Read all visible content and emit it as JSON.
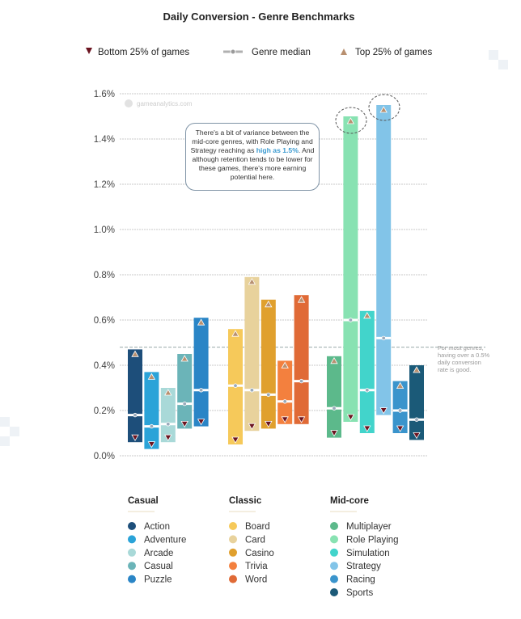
{
  "title": "Daily Conversion - Genre Benchmarks",
  "legend": {
    "bottom": "Bottom 25% of games",
    "median": "Genre median",
    "top": "Top 25% of games",
    "bottom_color": "#6b1420",
    "median_color": "#b0b0b0",
    "top_color": "#b89070"
  },
  "watermark": "gameanalytics.com",
  "callout": {
    "before": "There's a bit of variance between the mid-core genres, with Role Playing and Strategy reaching as ",
    "highlight": "high as 1.5%",
    "after": ". And although retention tends to be lower for these games, there's more earning potential here."
  },
  "side_note": [
    "For most genres,",
    "having over a 0.5%",
    "daily conversion",
    "rate is good."
  ],
  "chart_data": {
    "type": "bar",
    "subtype": "floating range bar (bottom quartile to top quartile with median)",
    "title": "Daily Conversion - Genre Benchmarks",
    "ylim": [
      0,
      1.6
    ],
    "yticks": [
      "0.0%",
      "0.2%",
      "0.4%",
      "0.6%",
      "0.8%",
      "1.0%",
      "1.2%",
      "1.4%",
      "1.6%"
    ],
    "ytick_values": [
      0,
      0.2,
      0.4,
      0.6,
      0.8,
      1.0,
      1.2,
      1.4,
      1.6
    ],
    "grid": true,
    "reference_line": 0.48,
    "legend_position": "top",
    "groups": [
      {
        "name": "Casual",
        "genres": [
          {
            "name": "Action",
            "color": "#1d4e7a",
            "bottom": 0.06,
            "median": 0.18,
            "top": 0.47
          },
          {
            "name": "Adventure",
            "color": "#2aa3d8",
            "bottom": 0.03,
            "median": 0.13,
            "top": 0.37
          },
          {
            "name": "Arcade",
            "color": "#a9d9d8",
            "bottom": 0.06,
            "median": 0.14,
            "top": 0.3
          },
          {
            "name": "Casual",
            "color": "#6bb4b8",
            "bottom": 0.12,
            "median": 0.23,
            "top": 0.45
          },
          {
            "name": "Puzzle",
            "color": "#2a85c6",
            "bottom": 0.13,
            "median": 0.29,
            "top": 0.61
          }
        ]
      },
      {
        "name": "Classic",
        "genres": [
          {
            "name": "Board",
            "color": "#f6c95a",
            "bottom": 0.05,
            "median": 0.31,
            "top": 0.56
          },
          {
            "name": "Card",
            "color": "#e8d29c",
            "bottom": 0.11,
            "median": 0.29,
            "top": 0.79
          },
          {
            "name": "Casino",
            "color": "#e0a02e",
            "bottom": 0.12,
            "median": 0.27,
            "top": 0.69
          },
          {
            "name": "Trivia",
            "color": "#f3803e",
            "bottom": 0.14,
            "median": 0.24,
            "top": 0.42
          },
          {
            "name": "Word",
            "color": "#e06a36",
            "bottom": 0.14,
            "median": 0.33,
            "top": 0.71
          }
        ]
      },
      {
        "name": "Mid-core",
        "genres": [
          {
            "name": "Multiplayer",
            "color": "#5cb98b",
            "bottom": 0.08,
            "median": 0.21,
            "top": 0.44
          },
          {
            "name": "Role Playing",
            "color": "#88e2b2",
            "bottom": 0.15,
            "median": 0.6,
            "top": 1.5
          },
          {
            "name": "Simulation",
            "color": "#42d4cb",
            "bottom": 0.1,
            "median": 0.29,
            "top": 0.64
          },
          {
            "name": "Strategy",
            "color": "#82c4e8",
            "bottom": 0.18,
            "median": 0.52,
            "top": 1.55
          },
          {
            "name": "Racing",
            "color": "#3a94cc",
            "bottom": 0.1,
            "median": 0.2,
            "top": 0.33
          },
          {
            "name": "Sports",
            "color": "#1b5a78",
            "bottom": 0.07,
            "median": 0.16,
            "top": 0.4
          }
        ]
      }
    ]
  }
}
